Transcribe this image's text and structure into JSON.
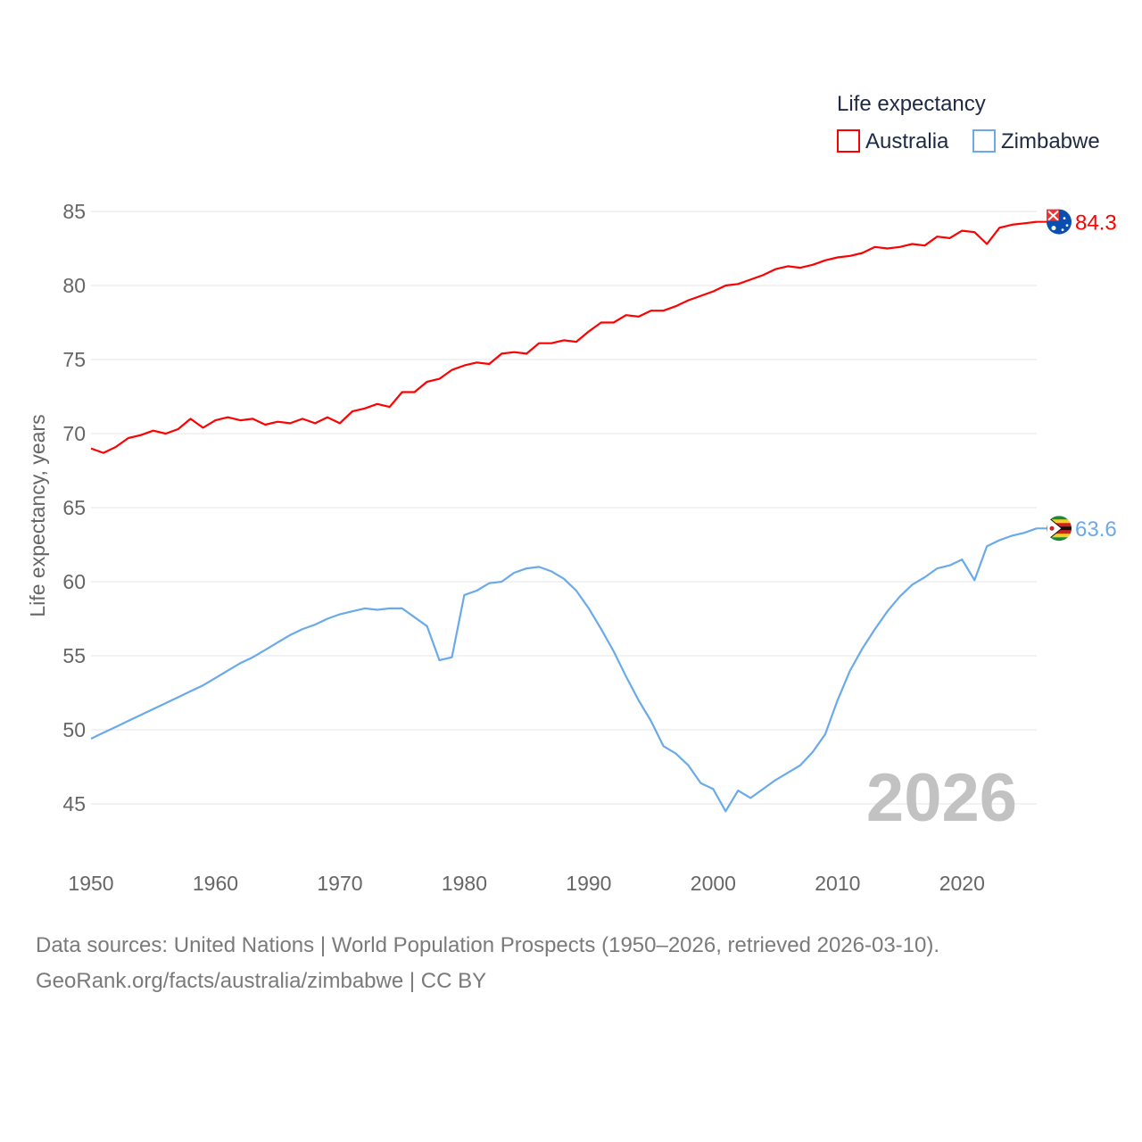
{
  "chart_data": {
    "type": "line",
    "title": "",
    "ylabel": "Life expectancy, years",
    "xlabel": "",
    "ylim": [
      45,
      85
    ],
    "xlim": [
      1950,
      2026
    ],
    "yticks": [
      45,
      50,
      55,
      60,
      65,
      70,
      75,
      80,
      85
    ],
    "xticks": [
      1950,
      1960,
      1970,
      1980,
      1990,
      2000,
      2010,
      2020
    ],
    "grid": true,
    "legend": {
      "title": "Life expectancy",
      "placement": "top-right"
    },
    "year_label": "2026",
    "x": [
      1950,
      1951,
      1952,
      1953,
      1954,
      1955,
      1956,
      1957,
      1958,
      1959,
      1960,
      1961,
      1962,
      1963,
      1964,
      1965,
      1966,
      1967,
      1968,
      1969,
      1970,
      1971,
      1972,
      1973,
      1974,
      1975,
      1976,
      1977,
      1978,
      1979,
      1980,
      1981,
      1982,
      1983,
      1984,
      1985,
      1986,
      1987,
      1988,
      1989,
      1990,
      1991,
      1992,
      1993,
      1994,
      1995,
      1996,
      1997,
      1998,
      1999,
      2000,
      2001,
      2002,
      2003,
      2004,
      2005,
      2006,
      2007,
      2008,
      2009,
      2010,
      2011,
      2012,
      2013,
      2014,
      2015,
      2016,
      2017,
      2018,
      2019,
      2020,
      2021,
      2022,
      2023,
      2024,
      2025,
      2026
    ],
    "series": [
      {
        "name": "Australia",
        "color": "#ff0000",
        "end_label": "84.3",
        "values": [
          69.0,
          68.7,
          69.1,
          69.7,
          69.9,
          70.2,
          70.0,
          70.3,
          71.0,
          70.4,
          70.9,
          71.1,
          70.9,
          71.0,
          70.6,
          70.8,
          70.7,
          71.0,
          70.7,
          71.1,
          70.7,
          71.5,
          71.7,
          72.0,
          71.8,
          72.8,
          72.8,
          73.5,
          73.7,
          74.3,
          74.6,
          74.8,
          74.7,
          75.4,
          75.5,
          75.4,
          76.1,
          76.1,
          76.3,
          76.2,
          76.9,
          77.5,
          77.5,
          78.0,
          77.9,
          78.3,
          78.3,
          78.6,
          79.0,
          79.3,
          79.6,
          80.0,
          80.1,
          80.4,
          80.7,
          81.1,
          81.3,
          81.2,
          81.4,
          81.7,
          81.9,
          82.0,
          82.2,
          82.6,
          82.5,
          82.6,
          82.8,
          82.7,
          83.3,
          83.2,
          83.7,
          83.6,
          82.8,
          83.9,
          84.1,
          84.2,
          84.3
        ]
      },
      {
        "name": "Zimbabwe",
        "color": "#6aaaea",
        "end_label": "63.6",
        "values": [
          49.4,
          49.8,
          50.2,
          50.6,
          51.0,
          51.4,
          51.8,
          52.2,
          52.6,
          53.0,
          53.5,
          54.0,
          54.5,
          54.9,
          55.4,
          55.9,
          56.4,
          56.8,
          57.1,
          57.5,
          57.8,
          58.0,
          58.2,
          58.1,
          58.2,
          58.2,
          57.6,
          57.0,
          54.7,
          54.9,
          59.1,
          59.4,
          59.9,
          60.0,
          60.6,
          60.9,
          61.0,
          60.7,
          60.2,
          59.4,
          58.2,
          56.8,
          55.3,
          53.6,
          52.0,
          50.6,
          48.9,
          48.4,
          47.6,
          46.4,
          46.0,
          44.5,
          45.9,
          45.4,
          46.0,
          46.6,
          47.1,
          47.6,
          48.5,
          49.7,
          52.0,
          54.0,
          55.5,
          56.8,
          58.0,
          59.0,
          59.8,
          60.3,
          60.9,
          61.1,
          61.5,
          60.1,
          62.4,
          62.8,
          63.1,
          63.3,
          63.6
        ]
      }
    ]
  },
  "footer": {
    "line1": "Data sources: United Nations | World Population Prospects (1950–2026, retrieved 2026-03-10).",
    "line2": "GeoRank.org/facts/australia/zimbabwe | CC BY"
  }
}
